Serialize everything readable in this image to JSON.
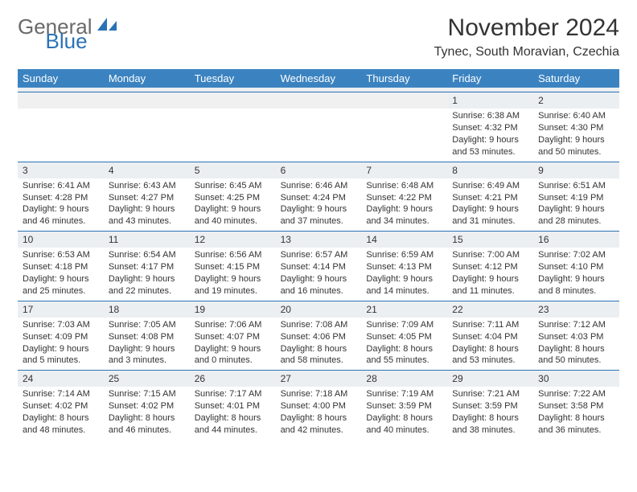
{
  "brand": {
    "part1": "General",
    "part2": "Blue"
  },
  "title": "November 2024",
  "location": "Tynec, South Moravian, Czechia",
  "colors": {
    "header_bg": "#3b83c0",
    "border": "#2a72b5",
    "daynum_bg": "#eceff1",
    "text": "#333333",
    "brand_gray": "#6a6a6a",
    "brand_blue": "#2a72b5"
  },
  "day_names": [
    "Sunday",
    "Monday",
    "Tuesday",
    "Wednesday",
    "Thursday",
    "Friday",
    "Saturday"
  ],
  "weeks": [
    [
      null,
      null,
      null,
      null,
      null,
      {
        "day": "1",
        "sunrise": "Sunrise: 6:38 AM",
        "sunset": "Sunset: 4:32 PM",
        "daylight": "Daylight: 9 hours and 53 minutes."
      },
      {
        "day": "2",
        "sunrise": "Sunrise: 6:40 AM",
        "sunset": "Sunset: 4:30 PM",
        "daylight": "Daylight: 9 hours and 50 minutes."
      }
    ],
    [
      {
        "day": "3",
        "sunrise": "Sunrise: 6:41 AM",
        "sunset": "Sunset: 4:28 PM",
        "daylight": "Daylight: 9 hours and 46 minutes."
      },
      {
        "day": "4",
        "sunrise": "Sunrise: 6:43 AM",
        "sunset": "Sunset: 4:27 PM",
        "daylight": "Daylight: 9 hours and 43 minutes."
      },
      {
        "day": "5",
        "sunrise": "Sunrise: 6:45 AM",
        "sunset": "Sunset: 4:25 PM",
        "daylight": "Daylight: 9 hours and 40 minutes."
      },
      {
        "day": "6",
        "sunrise": "Sunrise: 6:46 AM",
        "sunset": "Sunset: 4:24 PM",
        "daylight": "Daylight: 9 hours and 37 minutes."
      },
      {
        "day": "7",
        "sunrise": "Sunrise: 6:48 AM",
        "sunset": "Sunset: 4:22 PM",
        "daylight": "Daylight: 9 hours and 34 minutes."
      },
      {
        "day": "8",
        "sunrise": "Sunrise: 6:49 AM",
        "sunset": "Sunset: 4:21 PM",
        "daylight": "Daylight: 9 hours and 31 minutes."
      },
      {
        "day": "9",
        "sunrise": "Sunrise: 6:51 AM",
        "sunset": "Sunset: 4:19 PM",
        "daylight": "Daylight: 9 hours and 28 minutes."
      }
    ],
    [
      {
        "day": "10",
        "sunrise": "Sunrise: 6:53 AM",
        "sunset": "Sunset: 4:18 PM",
        "daylight": "Daylight: 9 hours and 25 minutes."
      },
      {
        "day": "11",
        "sunrise": "Sunrise: 6:54 AM",
        "sunset": "Sunset: 4:17 PM",
        "daylight": "Daylight: 9 hours and 22 minutes."
      },
      {
        "day": "12",
        "sunrise": "Sunrise: 6:56 AM",
        "sunset": "Sunset: 4:15 PM",
        "daylight": "Daylight: 9 hours and 19 minutes."
      },
      {
        "day": "13",
        "sunrise": "Sunrise: 6:57 AM",
        "sunset": "Sunset: 4:14 PM",
        "daylight": "Daylight: 9 hours and 16 minutes."
      },
      {
        "day": "14",
        "sunrise": "Sunrise: 6:59 AM",
        "sunset": "Sunset: 4:13 PM",
        "daylight": "Daylight: 9 hours and 14 minutes."
      },
      {
        "day": "15",
        "sunrise": "Sunrise: 7:00 AM",
        "sunset": "Sunset: 4:12 PM",
        "daylight": "Daylight: 9 hours and 11 minutes."
      },
      {
        "day": "16",
        "sunrise": "Sunrise: 7:02 AM",
        "sunset": "Sunset: 4:10 PM",
        "daylight": "Daylight: 9 hours and 8 minutes."
      }
    ],
    [
      {
        "day": "17",
        "sunrise": "Sunrise: 7:03 AM",
        "sunset": "Sunset: 4:09 PM",
        "daylight": "Daylight: 9 hours and 5 minutes."
      },
      {
        "day": "18",
        "sunrise": "Sunrise: 7:05 AM",
        "sunset": "Sunset: 4:08 PM",
        "daylight": "Daylight: 9 hours and 3 minutes."
      },
      {
        "day": "19",
        "sunrise": "Sunrise: 7:06 AM",
        "sunset": "Sunset: 4:07 PM",
        "daylight": "Daylight: 9 hours and 0 minutes."
      },
      {
        "day": "20",
        "sunrise": "Sunrise: 7:08 AM",
        "sunset": "Sunset: 4:06 PM",
        "daylight": "Daylight: 8 hours and 58 minutes."
      },
      {
        "day": "21",
        "sunrise": "Sunrise: 7:09 AM",
        "sunset": "Sunset: 4:05 PM",
        "daylight": "Daylight: 8 hours and 55 minutes."
      },
      {
        "day": "22",
        "sunrise": "Sunrise: 7:11 AM",
        "sunset": "Sunset: 4:04 PM",
        "daylight": "Daylight: 8 hours and 53 minutes."
      },
      {
        "day": "23",
        "sunrise": "Sunrise: 7:12 AM",
        "sunset": "Sunset: 4:03 PM",
        "daylight": "Daylight: 8 hours and 50 minutes."
      }
    ],
    [
      {
        "day": "24",
        "sunrise": "Sunrise: 7:14 AM",
        "sunset": "Sunset: 4:02 PM",
        "daylight": "Daylight: 8 hours and 48 minutes."
      },
      {
        "day": "25",
        "sunrise": "Sunrise: 7:15 AM",
        "sunset": "Sunset: 4:02 PM",
        "daylight": "Daylight: 8 hours and 46 minutes."
      },
      {
        "day": "26",
        "sunrise": "Sunrise: 7:17 AM",
        "sunset": "Sunset: 4:01 PM",
        "daylight": "Daylight: 8 hours and 44 minutes."
      },
      {
        "day": "27",
        "sunrise": "Sunrise: 7:18 AM",
        "sunset": "Sunset: 4:00 PM",
        "daylight": "Daylight: 8 hours and 42 minutes."
      },
      {
        "day": "28",
        "sunrise": "Sunrise: 7:19 AM",
        "sunset": "Sunset: 3:59 PM",
        "daylight": "Daylight: 8 hours and 40 minutes."
      },
      {
        "day": "29",
        "sunrise": "Sunrise: 7:21 AM",
        "sunset": "Sunset: 3:59 PM",
        "daylight": "Daylight: 8 hours and 38 minutes."
      },
      {
        "day": "30",
        "sunrise": "Sunrise: 7:22 AM",
        "sunset": "Sunset: 3:58 PM",
        "daylight": "Daylight: 8 hours and 36 minutes."
      }
    ]
  ]
}
